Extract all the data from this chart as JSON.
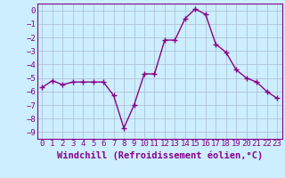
{
  "x": [
    0,
    1,
    2,
    3,
    4,
    5,
    6,
    7,
    8,
    9,
    10,
    11,
    12,
    13,
    14,
    15,
    16,
    17,
    18,
    19,
    20,
    21,
    22,
    23
  ],
  "y": [
    -5.7,
    -5.2,
    -5.5,
    -5.3,
    -5.3,
    -5.3,
    -5.3,
    -6.3,
    -8.7,
    -7.0,
    -4.7,
    -4.7,
    -2.2,
    -2.2,
    -0.6,
    0.1,
    -0.3,
    -2.5,
    -3.1,
    -4.4,
    -5.0,
    -5.3,
    -6.0,
    -6.5
  ],
  "line_color": "#880088",
  "marker": "+",
  "marker_size": 4,
  "bg_color": "#cceeff",
  "grid_color": "#aabbcc",
  "xlabel": "Windchill (Refroidissement éolien,°C)",
  "ylabel": "",
  "title": "",
  "xlim": [
    -0.5,
    23.5
  ],
  "ylim": [
    -9.5,
    0.5
  ],
  "yticks": [
    0,
    -1,
    -2,
    -3,
    -4,
    -5,
    -6,
    -7,
    -8,
    -9
  ],
  "xticks": [
    0,
    1,
    2,
    3,
    4,
    5,
    6,
    7,
    8,
    9,
    10,
    11,
    12,
    13,
    14,
    15,
    16,
    17,
    18,
    19,
    20,
    21,
    22,
    23
  ],
  "tick_label_color": "#880088",
  "xlabel_color": "#880088",
  "xlabel_fontsize": 7.5,
  "tick_fontsize": 6.5,
  "line_width": 1.0
}
